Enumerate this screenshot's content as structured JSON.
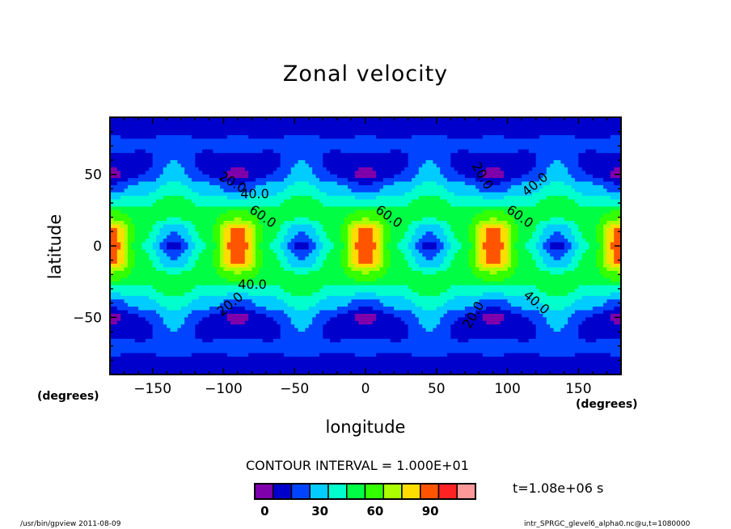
{
  "chart_data": {
    "type": "heatmap",
    "title": "Zonal velocity",
    "xlabel": "longitude",
    "ylabel": "latitude",
    "x_units": "(degrees)",
    "y_units": "(degrees)",
    "xlim": [
      -180,
      180
    ],
    "ylim": [
      -90,
      90
    ],
    "x_ticks": [
      -150,
      -100,
      -50,
      0,
      50,
      100,
      150
    ],
    "y_ticks": [
      -50,
      0,
      50
    ],
    "x_tick_labels": [
      "−150",
      "−100",
      "−50",
      "0",
      "50",
      "100",
      "150"
    ],
    "y_tick_labels": [
      "−50",
      "0",
      "50"
    ],
    "grid_lon": [
      -180,
      -157.5,
      -135,
      -112.5,
      -90,
      -67.5,
      -45,
      -22.5,
      0,
      22.5,
      45,
      67.5,
      90,
      112.5,
      135,
      157.5,
      180
    ],
    "grid_lat": [
      90,
      80,
      70,
      60,
      50,
      40,
      30,
      20,
      10,
      0,
      -10,
      -20,
      -30,
      -40,
      -50,
      -60,
      -70,
      -80,
      -90
    ],
    "z": [
      [
        12,
        12,
        12,
        12,
        12,
        12,
        12,
        12,
        12,
        12,
        12,
        12,
        12,
        12,
        12,
        12,
        12
      ],
      [
        18,
        18,
        18,
        18,
        18,
        18,
        18,
        18,
        18,
        18,
        18,
        18,
        18,
        18,
        18,
        18,
        18
      ],
      [
        25,
        22,
        28,
        22,
        25,
        22,
        28,
        22,
        25,
        22,
        28,
        22,
        25,
        22,
        28,
        22,
        25
      ],
      [
        15,
        15,
        30,
        15,
        15,
        15,
        30,
        15,
        15,
        15,
        30,
        15,
        15,
        15,
        30,
        15,
        15
      ],
      [
        5,
        20,
        35,
        20,
        5,
        20,
        35,
        20,
        5,
        20,
        35,
        20,
        5,
        20,
        35,
        20,
        5
      ],
      [
        25,
        35,
        45,
        35,
        25,
        35,
        45,
        35,
        25,
        35,
        45,
        35,
        25,
        35,
        45,
        35,
        25
      ],
      [
        45,
        48,
        55,
        48,
        45,
        48,
        55,
        48,
        45,
        48,
        55,
        48,
        45,
        48,
        55,
        48,
        45
      ],
      [
        70,
        55,
        50,
        55,
        70,
        55,
        50,
        55,
        70,
        55,
        50,
        55,
        70,
        55,
        50,
        55,
        70
      ],
      [
        95,
        55,
        30,
        55,
        95,
        55,
        30,
        55,
        95,
        55,
        30,
        55,
        95,
        55,
        30,
        55,
        95
      ],
      [
        100,
        50,
        15,
        50,
        100,
        50,
        15,
        50,
        100,
        50,
        15,
        50,
        100,
        50,
        15,
        50,
        100
      ],
      [
        95,
        55,
        30,
        55,
        95,
        55,
        30,
        55,
        95,
        55,
        30,
        55,
        95,
        55,
        30,
        55,
        95
      ],
      [
        70,
        55,
        50,
        55,
        70,
        55,
        50,
        55,
        70,
        55,
        50,
        55,
        70,
        55,
        50,
        55,
        70
      ],
      [
        45,
        48,
        55,
        48,
        45,
        48,
        55,
        48,
        45,
        48,
        55,
        48,
        45,
        48,
        55,
        48,
        45
      ],
      [
        25,
        35,
        45,
        35,
        25,
        35,
        45,
        35,
        25,
        35,
        45,
        35,
        25,
        35,
        45,
        35,
        25
      ],
      [
        5,
        20,
        35,
        20,
        5,
        20,
        35,
        20,
        5,
        20,
        35,
        20,
        5,
        20,
        35,
        20,
        5
      ],
      [
        15,
        15,
        30,
        15,
        15,
        15,
        30,
        15,
        15,
        15,
        30,
        15,
        15,
        15,
        30,
        15,
        15
      ],
      [
        25,
        22,
        28,
        22,
        25,
        22,
        28,
        22,
        25,
        22,
        28,
        22,
        25,
        22,
        28,
        22,
        25
      ],
      [
        18,
        18,
        18,
        18,
        18,
        18,
        18,
        18,
        18,
        18,
        18,
        18,
        18,
        18,
        18,
        18,
        18
      ],
      [
        12,
        12,
        12,
        12,
        12,
        12,
        12,
        12,
        12,
        12,
        12,
        12,
        12,
        12,
        12,
        12,
        12
      ]
    ],
    "levels": [
      0,
      10,
      20,
      30,
      40,
      50,
      60,
      70,
      80,
      90,
      100,
      110,
      120
    ],
    "colors": [
      "#7f00aa",
      "#0000cc",
      "#0044ff",
      "#00ccff",
      "#00ffcc",
      "#00ff44",
      "#33ff00",
      "#aaff00",
      "#ffdd00",
      "#ff5500",
      "#ff2222",
      "#ff9999"
    ],
    "contour_labels": [
      "20.0",
      "40.0",
      "60.0"
    ],
    "colorbar": {
      "tick_labels": [
        "0",
        "30",
        "60",
        "90"
      ]
    },
    "contour_interval_text": "CONTOUR INTERVAL = 1.000E+01",
    "time_text": "t=1.08e+06 s"
  },
  "footer": {
    "left": "/usr/bin/gpview  2011-08-09",
    "right": "intr_SPRGC_glevel6_alpha0.nc@u,t=1080000"
  }
}
